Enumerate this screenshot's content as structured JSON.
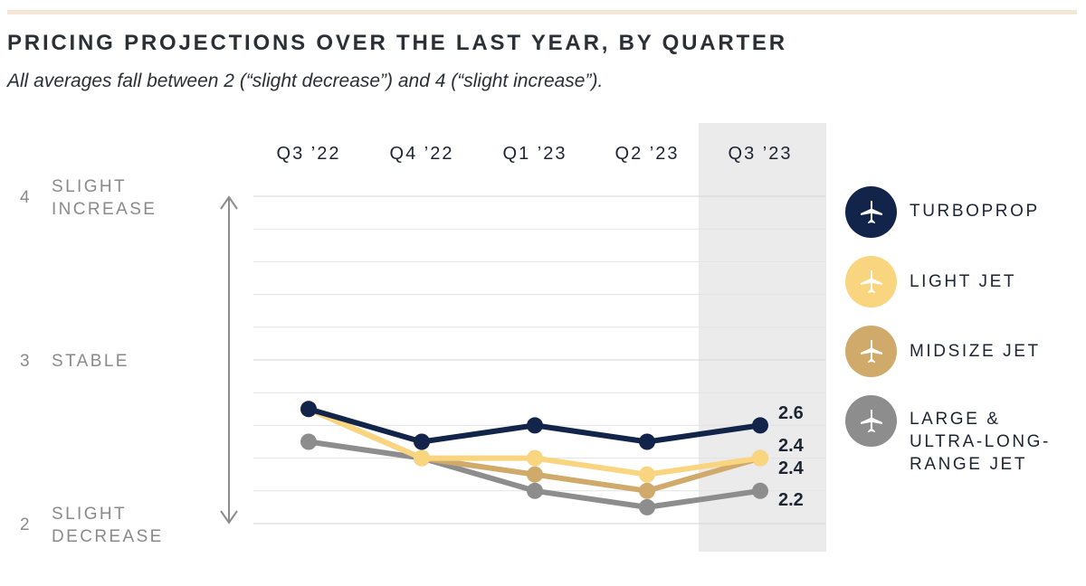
{
  "header": {
    "title": "PRICING PROJECTIONS OVER THE LAST YEAR, BY QUARTER",
    "subtitle": "All averages fall between 2 (“slight decrease”) and 4 (“slight increase”)."
  },
  "colors": {
    "turboprop": "#13244a",
    "light_jet": "#fad57f",
    "midsize_jet": "#cfaa6a",
    "large_jet": "#8d8d8d",
    "highlight": "#ebebeb",
    "grid": "#e3e3e3",
    "axis_arrow": "#8c8c8c"
  },
  "chart_data": {
    "type": "line",
    "categories": [
      "Q3 ’22",
      "Q4 ’22",
      "Q1 ’23",
      "Q2 ’23",
      "Q3 ’23"
    ],
    "highlighted_category": "Q3 ’23",
    "ylim": [
      2,
      4
    ],
    "y_ticks": [
      {
        "value": 4,
        "number": "4",
        "label": "SLIGHT\nINCREASE"
      },
      {
        "value": 3,
        "number": "3",
        "label": "STABLE"
      },
      {
        "value": 2,
        "number": "2",
        "label": "SLIGHT\nDECREASE"
      }
    ],
    "grid": true,
    "legend_position": "right",
    "series": [
      {
        "key": "large_jet",
        "name": "LARGE &\nULTRA-LONG-\nRANGE JET",
        "icon": "large-jet-icon",
        "values": [
          2.5,
          2.4,
          2.2,
          2.1,
          2.2
        ],
        "end_label": "2.2"
      },
      {
        "key": "midsize_jet",
        "name": "MIDSIZE JET",
        "icon": "midsize-jet-icon",
        "values": [
          2.7,
          2.4,
          2.3,
          2.2,
          2.4
        ],
        "end_label": "2.4"
      },
      {
        "key": "light_jet",
        "name": "LIGHT JET",
        "icon": "light-jet-icon",
        "values": [
          2.7,
          2.4,
          2.4,
          2.3,
          2.4
        ],
        "end_label": "2.4"
      },
      {
        "key": "turboprop",
        "name": "TURBOPROP",
        "icon": "turboprop-icon",
        "values": [
          2.7,
          2.5,
          2.6,
          2.5,
          2.6
        ],
        "end_label": "2.6"
      }
    ]
  }
}
